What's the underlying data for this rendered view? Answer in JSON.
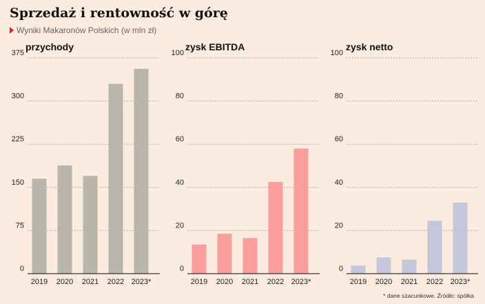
{
  "title": "Sprzedaż i rentowność w górę",
  "subtitle": "Wyniki Makaronów Polskich (w mln zł)",
  "footnote": "* dane szacunkowe. Źródło: spółka",
  "chart_data": [
    {
      "type": "bar",
      "title": "przychody",
      "categories": [
        "2019",
        "2020",
        "2021",
        "2022",
        "2023*"
      ],
      "values": [
        165,
        188,
        170,
        330,
        356
      ],
      "ylim": [
        0,
        375
      ],
      "yticks": [
        0,
        75,
        150,
        225,
        300,
        375
      ],
      "color": "#b8b6ab",
      "grid": true
    },
    {
      "type": "bar",
      "title": "zysk EBITDA",
      "categories": [
        "2019",
        "2020",
        "2021",
        "2022",
        "2023*"
      ],
      "values": [
        13.5,
        18.5,
        16.5,
        42.5,
        58
      ],
      "ylim": [
        0,
        100
      ],
      "yticks": [
        0,
        20,
        40,
        60,
        80,
        100
      ],
      "color": "#f99d9d",
      "grid": true
    },
    {
      "type": "bar",
      "title": "zysk netto",
      "categories": [
        "2019",
        "2020",
        "2021",
        "2022",
        "2023*"
      ],
      "values": [
        3.8,
        7.5,
        6.5,
        24.5,
        33
      ],
      "ylim": [
        0,
        100
      ],
      "yticks": [
        0,
        20,
        40,
        60,
        80,
        100
      ],
      "color": "#c4c7da",
      "grid": true
    }
  ]
}
